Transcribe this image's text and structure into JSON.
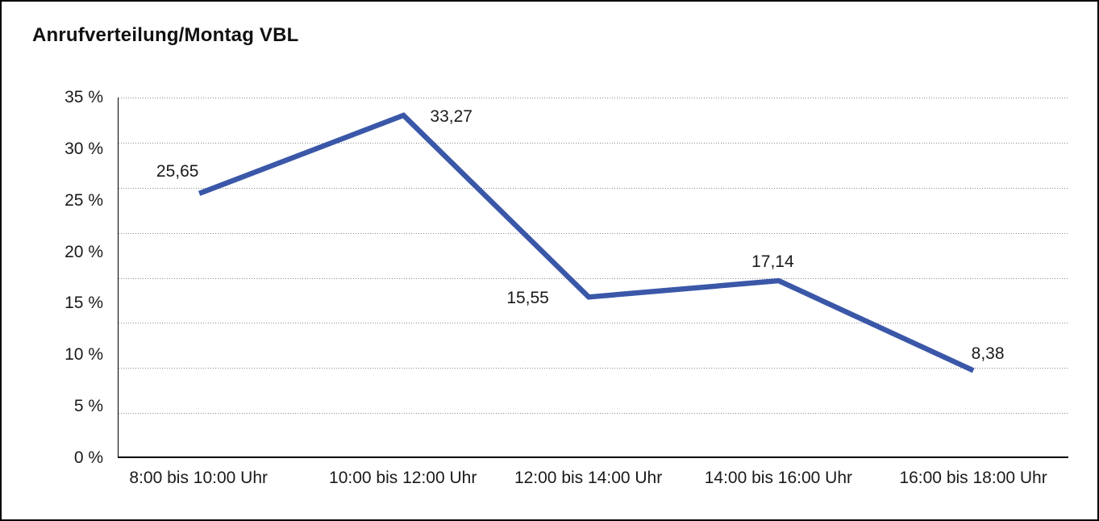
{
  "chart_data": {
    "type": "line",
    "title": "Anrufverteilung/Montag VBL",
    "categories": [
      "8:00 bis 10:00 Uhr",
      "10:00 bis 12:00 Uhr",
      "12:00 bis 14:00 Uhr",
      "14:00 bis 16:00 Uhr",
      "16:00 bis 18:00 Uhr"
    ],
    "series": [
      {
        "name": "Anrufverteilung Montag VBL",
        "values": [
          25.65,
          33.27,
          15.55,
          17.14,
          8.38
        ],
        "point_labels": [
          "25,65",
          "33,27",
          "15,55",
          "17,14",
          "8,38"
        ]
      }
    ],
    "xlabel": "",
    "ylabel": "",
    "ylim": [
      0,
      35
    ],
    "y_tick_labels": [
      "35 %",
      "30 %",
      "25 %",
      "20 %",
      "15 %",
      "10 %",
      "5 %",
      "0 %"
    ],
    "grid": "dotted-horizontal",
    "legend_position": "none",
    "colors": {
      "line": "#3A57A8",
      "grid": "#8C8C8C",
      "axis": "#000000",
      "text": "#1A1A1A",
      "background": "#FFFFFF",
      "frame_border": "#000000"
    }
  }
}
